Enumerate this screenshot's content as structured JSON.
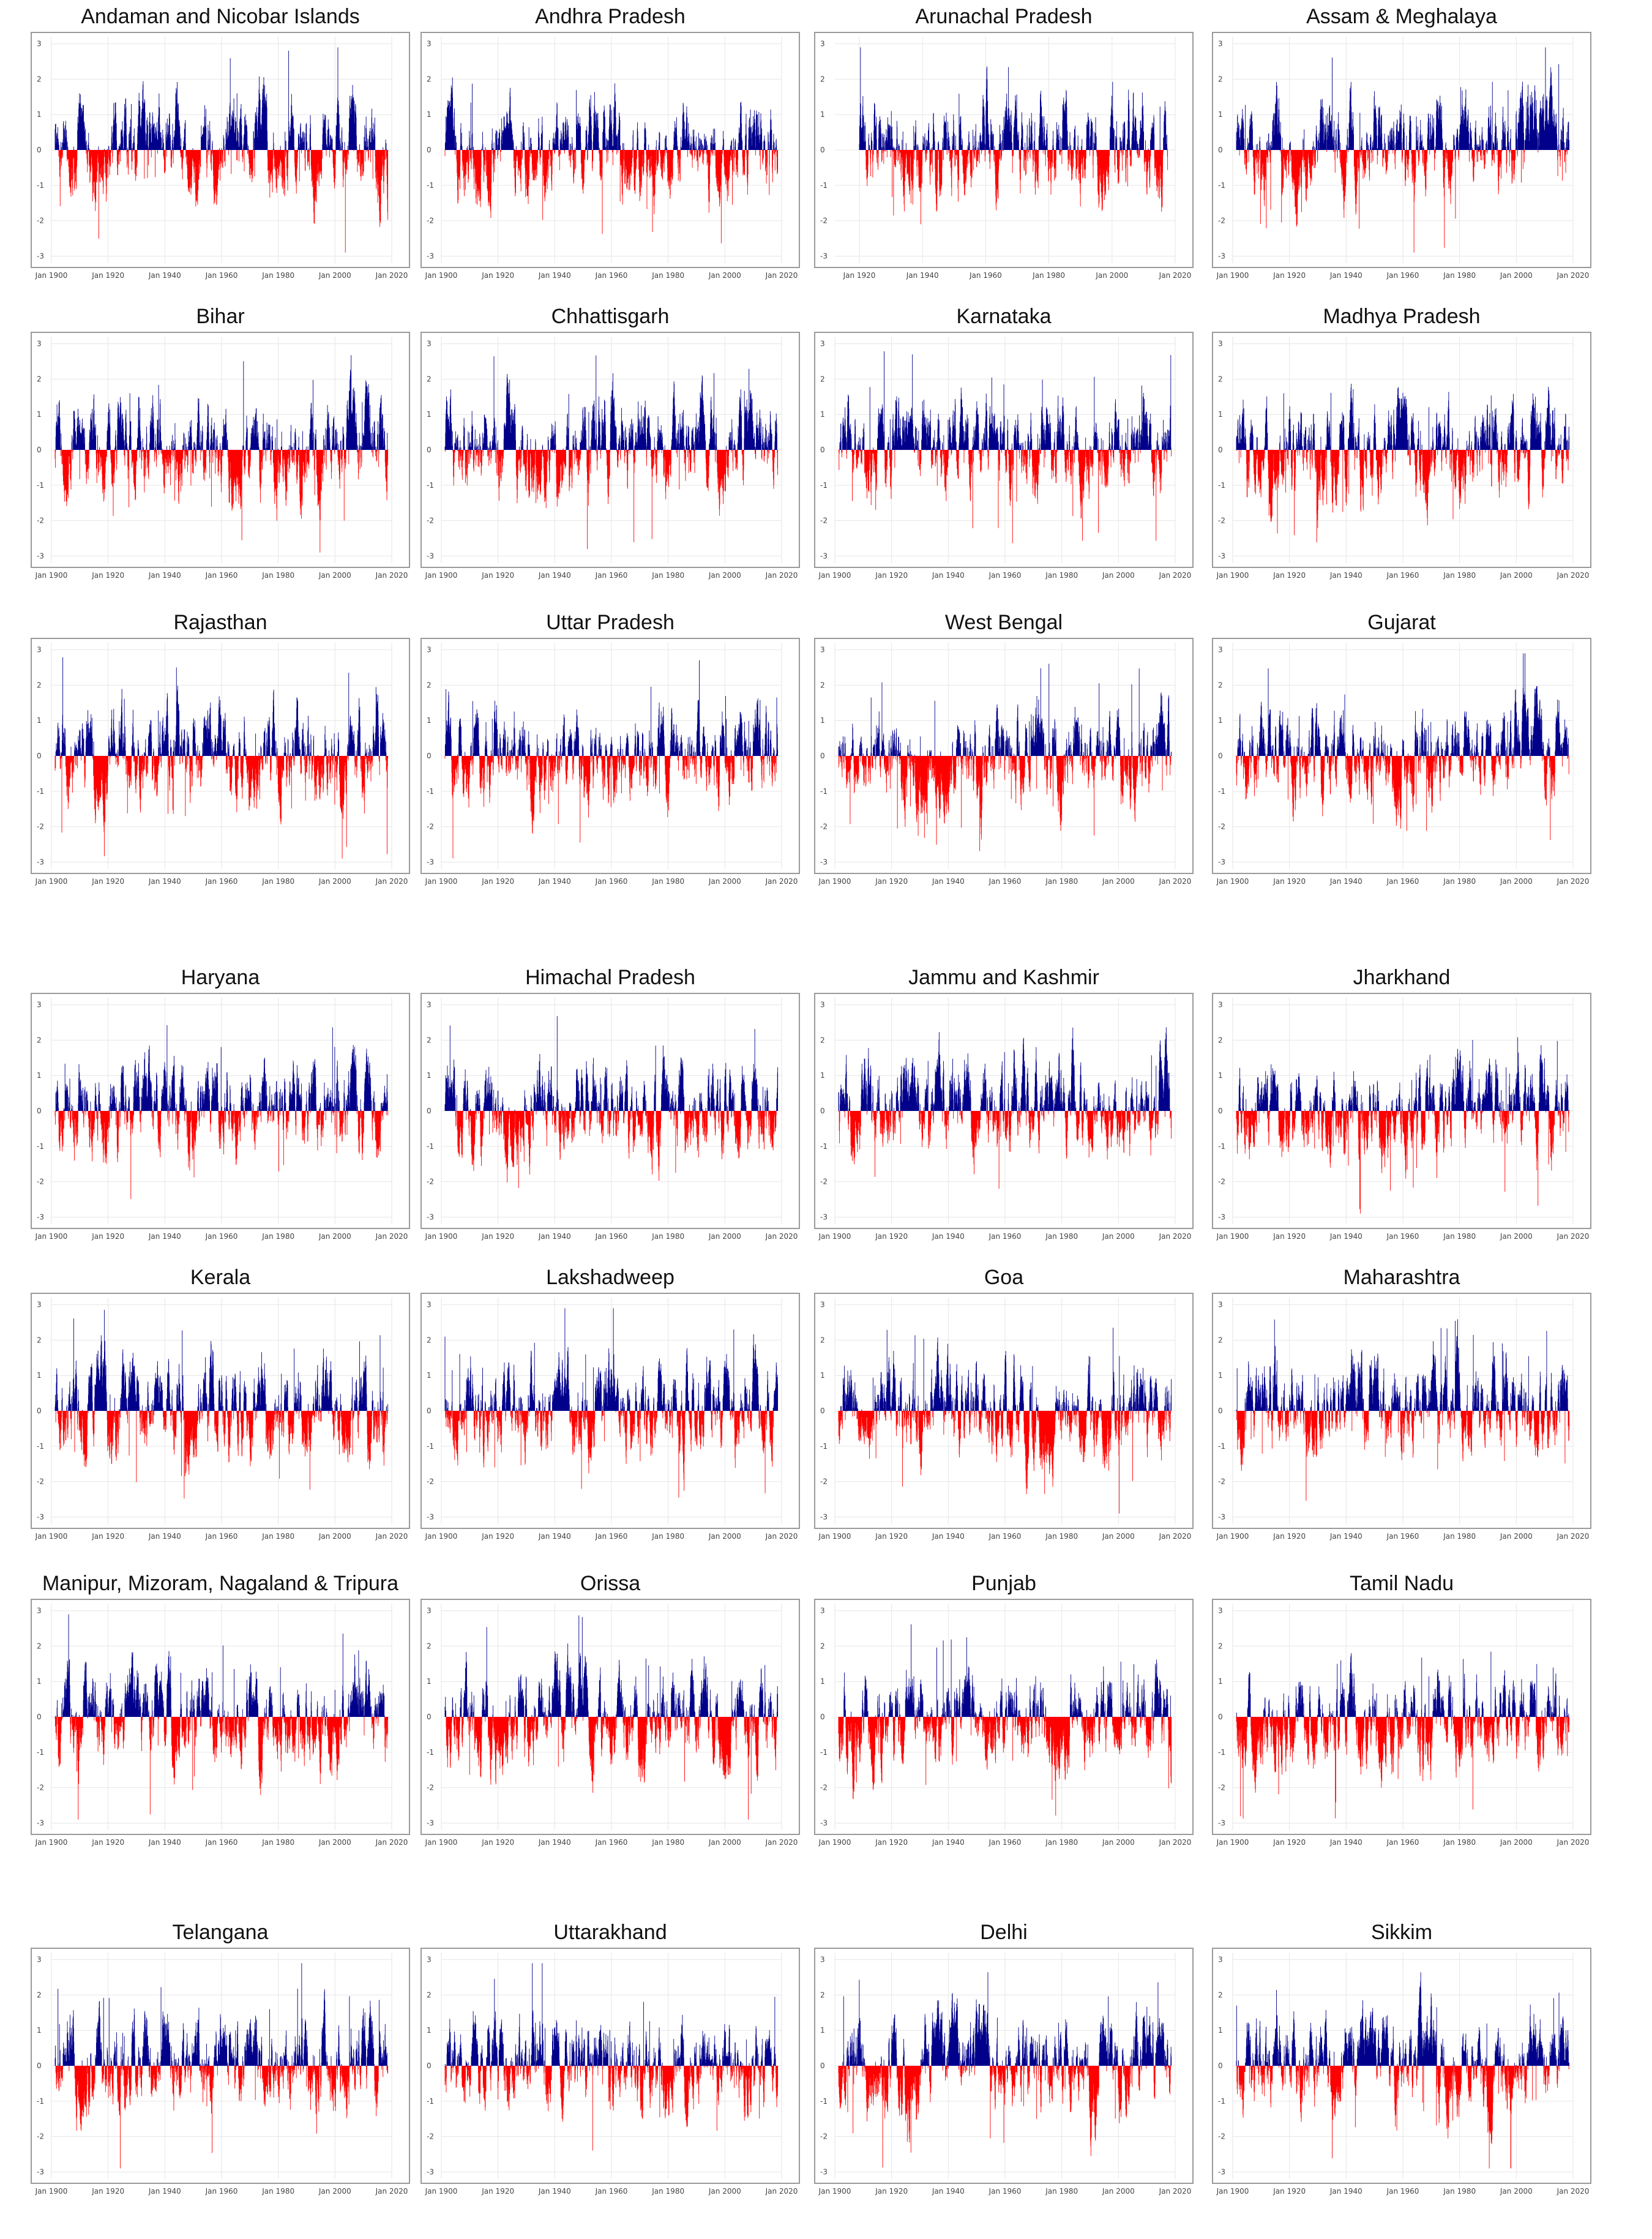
{
  "colors": {
    "positive": "#00008B",
    "negative": "#FF0000",
    "grid": "#e6e6e6",
    "frame": "#9a9a9a"
  },
  "chart_data": [
    {
      "type": "bar",
      "title": "Andaman and Nicobar Islands",
      "x_ticks": [
        "Jan 1900",
        "Jan 1920",
        "Jan 1940",
        "Jan 1960",
        "Jan 1980",
        "Jan 2000",
        "Jan 2020"
      ],
      "y_ticks": [
        "3",
        "2",
        "1",
        "0",
        "-1",
        "-2",
        "-3"
      ],
      "ylim": [
        -3.2,
        3.2
      ],
      "xlabel": "",
      "ylabel": ""
    },
    {
      "type": "bar",
      "title": "Andhra Pradesh",
      "x_ticks": [
        "Jan 1900",
        "Jan 1920",
        "Jan 1940",
        "Jan 1960",
        "Jan 1980",
        "Jan 2000",
        "Jan 2020"
      ],
      "y_ticks": [
        "3",
        "2",
        "1",
        "0",
        "-1",
        "-2",
        "-3"
      ],
      "ylim": [
        -3.2,
        3.2
      ],
      "xlabel": "",
      "ylabel": ""
    },
    {
      "type": "bar",
      "title": "Arunachal Pradesh",
      "x_ticks": [
        "Jan 1920",
        "Jan 1940",
        "Jan 1960",
        "Jan 1980",
        "Jan 2000",
        "Jan 2020"
      ],
      "y_ticks": [
        "3",
        "2",
        "1",
        "0",
        "-1",
        "-2",
        "-3"
      ],
      "ylim": [
        -3.2,
        3.2
      ],
      "xlabel": "",
      "ylabel": ""
    },
    {
      "type": "bar",
      "title": "Assam & Meghalaya",
      "x_ticks": [
        "Jan 1900",
        "Jan 1920",
        "Jan 1940",
        "Jan 1960",
        "Jan 1980",
        "Jan 2000",
        "Jan 2020"
      ],
      "y_ticks": [
        "3",
        "2",
        "1",
        "0",
        "-1",
        "-2",
        "-3"
      ],
      "ylim": [
        -3.2,
        3.2
      ],
      "xlabel": "",
      "ylabel": ""
    },
    {
      "type": "bar",
      "title": "Bihar",
      "x_ticks": [
        "Jan 1900",
        "Jan 1920",
        "Jan 1940",
        "Jan 1960",
        "Jan 1980",
        "Jan 2000",
        "Jan 2020"
      ],
      "y_ticks": [
        "3",
        "2",
        "1",
        "0",
        "-1",
        "-2",
        "-3"
      ],
      "ylim": [
        -3.2,
        3.2
      ],
      "xlabel": "",
      "ylabel": ""
    },
    {
      "type": "bar",
      "title": "Chhattisgarh",
      "x_ticks": [
        "Jan 1900",
        "Jan 1920",
        "Jan 1940",
        "Jan 1960",
        "Jan 1980",
        "Jan 2000",
        "Jan 2020"
      ],
      "y_ticks": [
        "3",
        "2",
        "1",
        "0",
        "-1",
        "-2",
        "-3"
      ],
      "ylim": [
        -3.2,
        3.2
      ],
      "xlabel": "",
      "ylabel": ""
    },
    {
      "type": "bar",
      "title": "Karnataka",
      "x_ticks": [
        "Jan 1900",
        "Jan 1920",
        "Jan 1940",
        "Jan 1960",
        "Jan 1980",
        "Jan 2000",
        "Jan 2020"
      ],
      "y_ticks": [
        "3",
        "2",
        "1",
        "0",
        "-1",
        "-2",
        "-3"
      ],
      "ylim": [
        -3.2,
        3.2
      ],
      "xlabel": "",
      "ylabel": ""
    },
    {
      "type": "bar",
      "title": "Madhya Pradesh",
      "x_ticks": [
        "Jan 1900",
        "Jan 1920",
        "Jan 1940",
        "Jan 1960",
        "Jan 1980",
        "Jan 2000",
        "Jan 2020"
      ],
      "y_ticks": [
        "3",
        "2",
        "1",
        "0",
        "-1",
        "-2",
        "-3"
      ],
      "ylim": [
        -3.2,
        3.2
      ],
      "xlabel": "",
      "ylabel": ""
    },
    {
      "type": "bar",
      "title": "Rajasthan",
      "x_ticks": [
        "Jan 1900",
        "Jan 1920",
        "Jan 1940",
        "Jan 1960",
        "Jan 1980",
        "Jan 2000",
        "Jan 2020"
      ],
      "y_ticks": [
        "3",
        "2",
        "1",
        "0",
        "-1",
        "-2",
        "-3"
      ],
      "ylim": [
        -3.2,
        3.2
      ],
      "xlabel": "",
      "ylabel": ""
    },
    {
      "type": "bar",
      "title": "Uttar Pradesh",
      "x_ticks": [
        "Jan 1900",
        "Jan 1920",
        "Jan 1940",
        "Jan 1960",
        "Jan 1980",
        "Jan 2000",
        "Jan 2020"
      ],
      "y_ticks": [
        "3",
        "2",
        "1",
        "0",
        "-1",
        "-2",
        "-3"
      ],
      "ylim": [
        -3.2,
        3.2
      ],
      "xlabel": "",
      "ylabel": ""
    },
    {
      "type": "bar",
      "title": "West Bengal",
      "x_ticks": [
        "Jan 1900",
        "Jan 1920",
        "Jan 1940",
        "Jan 1960",
        "Jan 1980",
        "Jan 2000",
        "Jan 2020"
      ],
      "y_ticks": [
        "3",
        "2",
        "1",
        "0",
        "-1",
        "-2",
        "-3"
      ],
      "ylim": [
        -3.2,
        3.2
      ],
      "xlabel": "",
      "ylabel": ""
    },
    {
      "type": "bar",
      "title": "Gujarat",
      "x_ticks": [
        "Jan 1900",
        "Jan 1920",
        "Jan 1940",
        "Jan 1960",
        "Jan 1980",
        "Jan 2000",
        "Jan 2020"
      ],
      "y_ticks": [
        "3",
        "2",
        "1",
        "0",
        "-1",
        "-2",
        "-3"
      ],
      "ylim": [
        -3.2,
        3.2
      ],
      "xlabel": "",
      "ylabel": ""
    },
    {
      "type": "bar",
      "title": "Haryana",
      "x_ticks": [
        "Jan 1900",
        "Jan 1920",
        "Jan 1940",
        "Jan 1960",
        "Jan 1980",
        "Jan 2000",
        "Jan 2020"
      ],
      "y_ticks": [
        "3",
        "2",
        "1",
        "0",
        "-1",
        "-2",
        "-3"
      ],
      "ylim": [
        -3.2,
        3.2
      ],
      "xlabel": "",
      "ylabel": ""
    },
    {
      "type": "bar",
      "title": "Himachal Pradesh",
      "x_ticks": [
        "Jan 1900",
        "Jan 1920",
        "Jan 1940",
        "Jan 1960",
        "Jan 1980",
        "Jan 2000",
        "Jan 2020"
      ],
      "y_ticks": [
        "3",
        "2",
        "1",
        "0",
        "-1",
        "-2",
        "-3"
      ],
      "ylim": [
        -3.2,
        3.2
      ],
      "xlabel": "",
      "ylabel": ""
    },
    {
      "type": "bar",
      "title": "Jammu and Kashmir",
      "x_ticks": [
        "Jan 1900",
        "Jan 1920",
        "Jan 1940",
        "Jan 1960",
        "Jan 1980",
        "Jan 2000",
        "Jan 2020"
      ],
      "y_ticks": [
        "3",
        "2",
        "1",
        "0",
        "-1",
        "-2",
        "-3"
      ],
      "ylim": [
        -3.2,
        3.2
      ],
      "xlabel": "",
      "ylabel": ""
    },
    {
      "type": "bar",
      "title": "Jharkhand",
      "x_ticks": [
        "Jan 1900",
        "Jan 1920",
        "Jan 1940",
        "Jan 1960",
        "Jan 1980",
        "Jan 2000",
        "Jan 2020"
      ],
      "y_ticks": [
        "3",
        "2",
        "1",
        "0",
        "-1",
        "-2",
        "-3"
      ],
      "ylim": [
        -3.2,
        3.2
      ],
      "xlabel": "",
      "ylabel": ""
    },
    {
      "type": "bar",
      "title": "Kerala",
      "x_ticks": [
        "Jan 1900",
        "Jan 1920",
        "Jan 1940",
        "Jan 1960",
        "Jan 1980",
        "Jan 2000",
        "Jan 2020"
      ],
      "y_ticks": [
        "3",
        "2",
        "1",
        "0",
        "-1",
        "-2",
        "-3"
      ],
      "ylim": [
        -3.2,
        3.2
      ],
      "xlabel": "",
      "ylabel": ""
    },
    {
      "type": "bar",
      "title": "Lakshadweep",
      "x_ticks": [
        "Jan 1900",
        "Jan 1920",
        "Jan 1940",
        "Jan 1960",
        "Jan 1980",
        "Jan 2000",
        "Jan 2020"
      ],
      "y_ticks": [
        "3",
        "2",
        "1",
        "0",
        "-1",
        "-2",
        "-3"
      ],
      "ylim": [
        -3.2,
        3.2
      ],
      "xlabel": "",
      "ylabel": ""
    },
    {
      "type": "bar",
      "title": "Goa",
      "x_ticks": [
        "Jan 1900",
        "Jan 1920",
        "Jan 1940",
        "Jan 1960",
        "Jan 1980",
        "Jan 2000",
        "Jan 2020"
      ],
      "y_ticks": [
        "3",
        "2",
        "1",
        "0",
        "-1",
        "-2",
        "-3"
      ],
      "ylim": [
        -3.2,
        3.2
      ],
      "xlabel": "",
      "ylabel": ""
    },
    {
      "type": "bar",
      "title": "Maharashtra",
      "x_ticks": [
        "Jan 1900",
        "Jan 1920",
        "Jan 1940",
        "Jan 1960",
        "Jan 1980",
        "Jan 2000",
        "Jan 2020"
      ],
      "y_ticks": [
        "3",
        "2",
        "1",
        "0",
        "-1",
        "-2",
        "-3"
      ],
      "ylim": [
        -3.2,
        3.2
      ],
      "xlabel": "",
      "ylabel": ""
    },
    {
      "type": "bar",
      "title": "Manipur, Mizoram, Nagaland & Tripura",
      "x_ticks": [
        "Jan 1900",
        "Jan 1920",
        "Jan 1940",
        "Jan 1960",
        "Jan 1980",
        "Jan 2000",
        "Jan 2020"
      ],
      "y_ticks": [
        "3",
        "2",
        "1",
        "0",
        "-1",
        "-2",
        "-3"
      ],
      "ylim": [
        -3.2,
        3.2
      ],
      "xlabel": "",
      "ylabel": ""
    },
    {
      "type": "bar",
      "title": "Orissa",
      "x_ticks": [
        "Jan 1900",
        "Jan 1920",
        "Jan 1940",
        "Jan 1960",
        "Jan 1980",
        "Jan 2000",
        "Jan 2020"
      ],
      "y_ticks": [
        "3",
        "2",
        "1",
        "0",
        "-1",
        "-2",
        "-3"
      ],
      "ylim": [
        -3.2,
        3.2
      ],
      "xlabel": "",
      "ylabel": ""
    },
    {
      "type": "bar",
      "title": "Punjab",
      "x_ticks": [
        "Jan 1900",
        "Jan 1920",
        "Jan 1940",
        "Jan 1960",
        "Jan 1980",
        "Jan 2000",
        "Jan 2020"
      ],
      "y_ticks": [
        "3",
        "2",
        "1",
        "0",
        "-1",
        "-2",
        "-3"
      ],
      "ylim": [
        -3.2,
        3.2
      ],
      "xlabel": "",
      "ylabel": ""
    },
    {
      "type": "bar",
      "title": "Tamil Nadu",
      "x_ticks": [
        "Jan 1900",
        "Jan 1920",
        "Jan 1940",
        "Jan 1960",
        "Jan 1980",
        "Jan 2000",
        "Jan 2020"
      ],
      "y_ticks": [
        "3",
        "2",
        "1",
        "0",
        "-1",
        "-2",
        "-3"
      ],
      "ylim": [
        -3.2,
        3.2
      ],
      "xlabel": "",
      "ylabel": ""
    },
    {
      "type": "bar",
      "title": "Telangana",
      "x_ticks": [
        "Jan 1900",
        "Jan 1920",
        "Jan 1940",
        "Jan 1960",
        "Jan 1980",
        "Jan 2000",
        "Jan 2020"
      ],
      "y_ticks": [
        "3",
        "2",
        "1",
        "0",
        "-1",
        "-2",
        "-3"
      ],
      "ylim": [
        -3.2,
        3.2
      ],
      "xlabel": "",
      "ylabel": ""
    },
    {
      "type": "bar",
      "title": "Uttarakhand",
      "x_ticks": [
        "Jan 1900",
        "Jan 1920",
        "Jan 1940",
        "Jan 1960",
        "Jan 1980",
        "Jan 2000",
        "Jan 2020"
      ],
      "y_ticks": [
        "3",
        "2",
        "1",
        "0",
        "-1",
        "-2",
        "-3"
      ],
      "ylim": [
        -3.2,
        3.2
      ],
      "xlabel": "",
      "ylabel": ""
    },
    {
      "type": "bar",
      "title": "Delhi",
      "x_ticks": [
        "Jan 1900",
        "Jan 1920",
        "Jan 1940",
        "Jan 1960",
        "Jan 1980",
        "Jan 2000",
        "Jan 2020"
      ],
      "y_ticks": [
        "3",
        "2",
        "1",
        "0",
        "-1",
        "-2",
        "-3"
      ],
      "ylim": [
        -3.2,
        3.2
      ],
      "xlabel": "",
      "ylabel": ""
    },
    {
      "type": "bar",
      "title": "Sikkim",
      "x_ticks": [
        "Jan 1900",
        "Jan 1920",
        "Jan 1940",
        "Jan 1960",
        "Jan 1980",
        "Jan 2000",
        "Jan 2020"
      ],
      "y_ticks": [
        "3",
        "2",
        "1",
        "0",
        "-1",
        "-2",
        "-3"
      ],
      "ylim": [
        -3.2,
        3.2
      ],
      "xlabel": "",
      "ylabel": ""
    }
  ]
}
